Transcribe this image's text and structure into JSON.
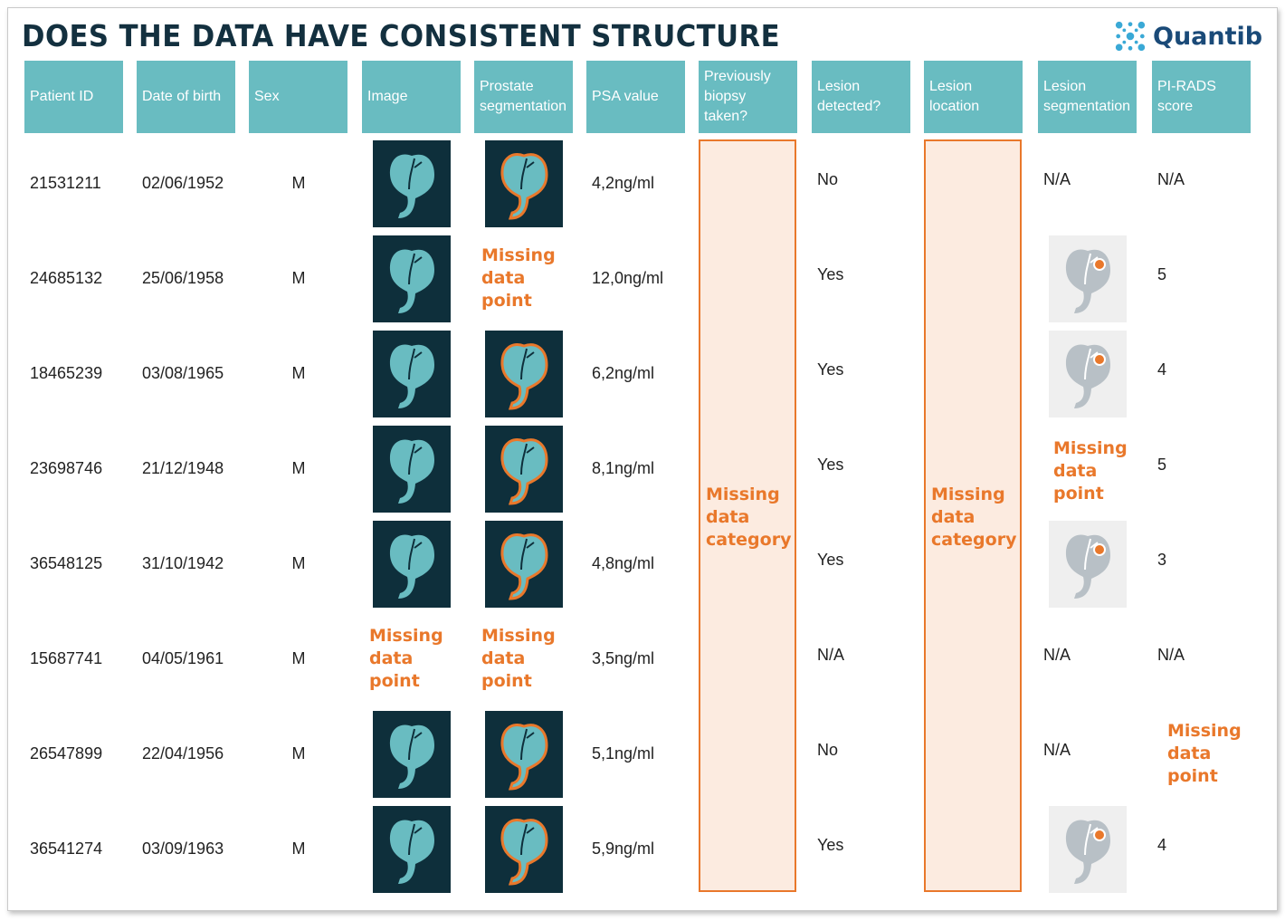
{
  "title": "DOES THE DATA HAVE CONSISTENT STRUCTURE",
  "logo": {
    "text": "Quantib",
    "icon": "quantib-molecule-icon"
  },
  "colors": {
    "header_bg": "#69bcc1",
    "title": "#13303f",
    "missing": "#e9782b",
    "missing_bg": "#fcebe0",
    "thumb_dark": "#0e2f3b",
    "thumb_light": "#efefef",
    "organ": "#69bcc1"
  },
  "headers": [
    [
      "Patient ID"
    ],
    [
      "Date of birth"
    ],
    [
      "Sex"
    ],
    [
      "Image"
    ],
    [
      "Prostate",
      "segmentation"
    ],
    [
      "PSA value"
    ],
    [
      "Previously",
      "biopsy",
      "taken?"
    ],
    [
      "Lesion",
      "detected?"
    ],
    [
      "Lesion",
      "location"
    ],
    [
      "Lesion",
      "segmentation"
    ],
    [
      "PI-RADS",
      "score"
    ]
  ],
  "missing_point": [
    "Missing",
    "data",
    "point"
  ],
  "missing_category": [
    "Missing",
    "data",
    "category"
  ],
  "rows": [
    {
      "id": "21531211",
      "dob": "02/06/1952",
      "sex": "M",
      "image": "present",
      "seg": "present",
      "psa": "4,2ng/ml",
      "detected": "No",
      "lesion_seg": "N/A",
      "pirads": "N/A"
    },
    {
      "id": "24685132",
      "dob": "25/06/1958",
      "sex": "M",
      "image": "present",
      "seg": "missing",
      "psa": "12,0ng/ml",
      "detected": "Yes",
      "lesion_seg": "present",
      "pirads": "5"
    },
    {
      "id": "18465239",
      "dob": "03/08/1965",
      "sex": "M",
      "image": "present",
      "seg": "present",
      "psa": "6,2ng/ml",
      "detected": "Yes",
      "lesion_seg": "present",
      "pirads": "4"
    },
    {
      "id": "23698746",
      "dob": "21/12/1948",
      "sex": "M",
      "image": "present",
      "seg": "present",
      "psa": "8,1ng/ml",
      "detected": "Yes",
      "lesion_seg": "missing",
      "pirads": "5"
    },
    {
      "id": "36548125",
      "dob": "31/10/1942",
      "sex": "M",
      "image": "present",
      "seg": "present",
      "psa": "4,8ng/ml",
      "detected": "Yes",
      "lesion_seg": "present",
      "pirads": "3"
    },
    {
      "id": "15687741",
      "dob": "04/05/1961",
      "sex": "M",
      "image": "missing",
      "seg": "missing",
      "psa": "3,5ng/ml",
      "detected": "N/A",
      "lesion_seg": "N/A",
      "pirads": "N/A"
    },
    {
      "id": "26547899",
      "dob": "22/04/1956",
      "sex": "M",
      "image": "present",
      "seg": "present",
      "psa": "5,1ng/ml",
      "detected": "No",
      "lesion_seg": "N/A",
      "pirads": "missing"
    },
    {
      "id": "36541274",
      "dob": "03/09/1963",
      "sex": "M",
      "image": "present",
      "seg": "present",
      "psa": "5,9ng/ml",
      "detected": "Yes",
      "lesion_seg": "present",
      "pirads": "4"
    }
  ]
}
